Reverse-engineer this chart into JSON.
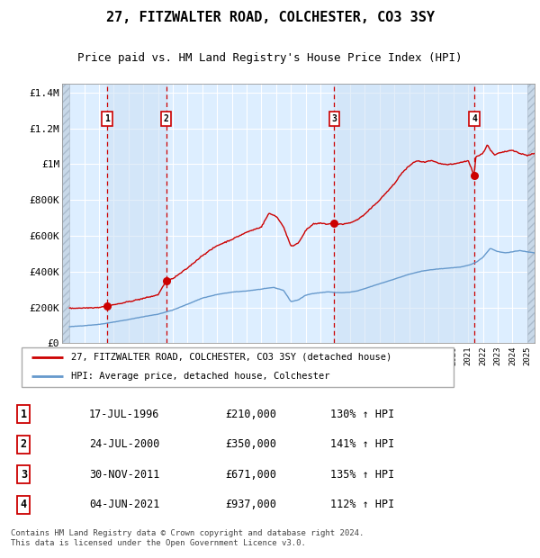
{
  "title": "27, FITZWALTER ROAD, COLCHESTER, CO3 3SY",
  "subtitle": "Price paid vs. HM Land Registry's House Price Index (HPI)",
  "xlim": [
    1993.5,
    2025.5
  ],
  "ylim": [
    0,
    1450000
  ],
  "yticks": [
    0,
    200000,
    400000,
    600000,
    800000,
    1000000,
    1200000,
    1400000
  ],
  "ytick_labels": [
    "£0",
    "£200K",
    "£400K",
    "£600K",
    "£800K",
    "£1M",
    "£1.2M",
    "£1.4M"
  ],
  "sale_dates": [
    1996.54,
    2000.56,
    2011.92,
    2021.42
  ],
  "sale_prices": [
    210000,
    350000,
    671000,
    937000
  ],
  "sale_labels": [
    "1",
    "2",
    "3",
    "4"
  ],
  "vline_x": [
    1996.54,
    2000.56,
    2011.92,
    2021.42
  ],
  "legend_line1": "27, FITZWALTER ROAD, COLCHESTER, CO3 3SY (detached house)",
  "legend_line2": "HPI: Average price, detached house, Colchester",
  "table_rows": [
    [
      "1",
      "17-JUL-1996",
      "£210,000",
      "130% ↑ HPI"
    ],
    [
      "2",
      "24-JUL-2000",
      "£350,000",
      "141% ↑ HPI"
    ],
    [
      "3",
      "30-NOV-2011",
      "£671,000",
      "135% ↑ HPI"
    ],
    [
      "4",
      "04-JUN-2021",
      "£937,000",
      "112% ↑ HPI"
    ]
  ],
  "footer": "Contains HM Land Registry data © Crown copyright and database right 2024.\nThis data is licensed under the Open Government Licence v3.0.",
  "red_color": "#cc0000",
  "blue_color": "#6699cc",
  "bg_color": "#ddeeff",
  "hatch_bg": "#c8d8e8",
  "grid_color": "#ffffff",
  "title_fontsize": 11,
  "subtitle_fontsize": 9,
  "axis_fontsize": 8,
  "label_fontsize": 8
}
